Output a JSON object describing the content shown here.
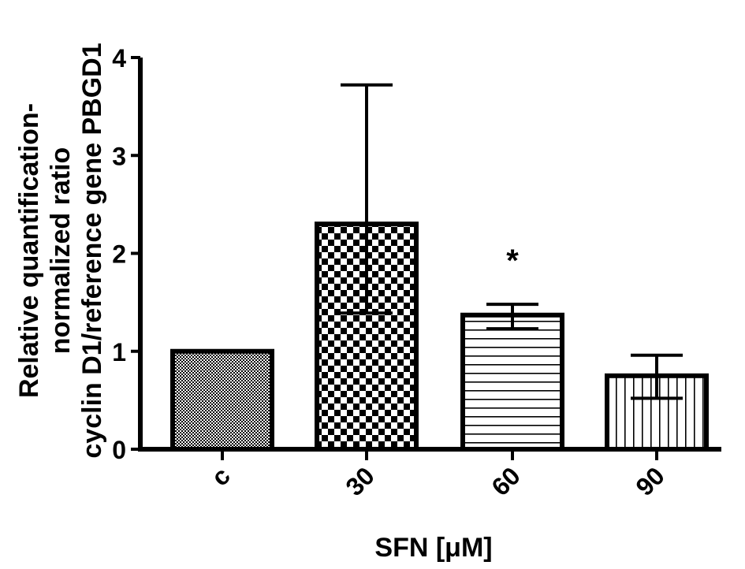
{
  "chart_data": {
    "type": "bar",
    "xlabel": "SFN [μM]",
    "ylabel_lines": [
      "Relative quantification-",
      "normalized ratio",
      "cyclin D1/reference gene PBGD1"
    ],
    "categories": [
      "c",
      "30",
      "60",
      "90"
    ],
    "values": [
      1.0,
      2.3,
      1.37,
      0.75
    ],
    "error_upper": [
      1.0,
      3.72,
      1.48,
      0.96
    ],
    "error_lower": [
      1.0,
      1.39,
      1.23,
      0.52
    ],
    "annotations": [
      "",
      "",
      "*",
      ""
    ],
    "ylim": [
      0,
      4
    ],
    "yticks": [
      "0",
      "1",
      "2",
      "3",
      "4"
    ],
    "bar_patterns": [
      "fine-dots",
      "checker",
      "horizontal-lines",
      "vertical-lines"
    ],
    "grid": false,
    "legend": "none"
  }
}
